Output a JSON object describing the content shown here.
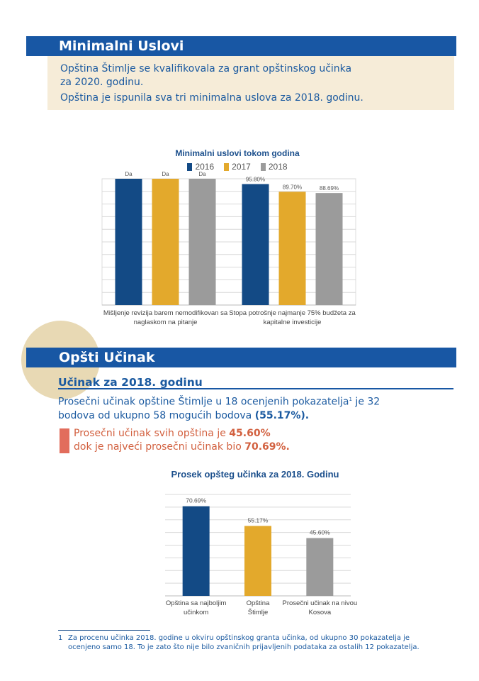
{
  "section1": {
    "title": "Minimalni Uslovi",
    "info_line1": "Opština Štimlje se kvalifikovala za grant opštinskog učinka",
    "info_line2": "za 2020. godinu.",
    "info_line3": "Opština je ispunila sva tri minimalna uslova za 2018. godinu."
  },
  "chart1": {
    "title": "Minimalni uslovi tokom godina",
    "legend": [
      "2016",
      "2017",
      "2018"
    ],
    "colors": [
      "#134a85",
      "#e3a92c",
      "#9b9b9b"
    ]
  },
  "section2": {
    "title": "Opšti Učinak",
    "subtitle": "Učinak za 2018. godinu",
    "para_line1_a": "Prosečni učinak opštine Štimlje u 18 ocenjenih pokazatelja",
    "para_sup": "1",
    "para_line1_b": " je 32",
    "para_line2_a": "bodova od ukupno 58 mogućih bodova ",
    "para_line2_b": "(55.17%).",
    "callout_line1_a": "Prosečni učinak svih opština je ",
    "callout_line1_b": "45.60%",
    "callout_line2_a": "dok je najveći prosečni učinak bio ",
    "callout_line2_b": "70.69%."
  },
  "chart2": {
    "title": "Prosek opšteg učinka za 2018. Godinu"
  },
  "chart_data": [
    {
      "type": "bar",
      "title": "Minimalni uslovi tokom godina",
      "ylim": [
        0,
        100
      ],
      "grid": true,
      "legend_position": "top",
      "categories": [
        [
          "Mišljenje revizija barem nemodifikovan sa",
          "naglaskom na pitanje"
        ],
        [
          "Stopa potrošnje najmanje 75% budžeta za",
          "kapitalne investicije"
        ]
      ],
      "series": [
        {
          "name": "2016",
          "values": [
            100,
            95.8
          ],
          "labels": [
            "Da",
            "95.80%"
          ]
        },
        {
          "name": "2017",
          "values": [
            100,
            89.7
          ],
          "labels": [
            "Da",
            "89.70%"
          ]
        },
        {
          "name": "2018",
          "values": [
            100,
            88.69
          ],
          "labels": [
            "Da",
            "88.69%"
          ]
        }
      ]
    },
    {
      "type": "bar",
      "title": "Prosek opšteg učinka za 2018. Godinu",
      "ylim": [
        0,
        80
      ],
      "grid": true,
      "categories": [
        [
          "Opština sa najboljim",
          "učinkom"
        ],
        [
          "Opština",
          "Štimlje"
        ],
        [
          "Prosečni učinak na nivou",
          "Kosova"
        ]
      ],
      "values": [
        70.69,
        55.17,
        45.6
      ],
      "labels": [
        "70.69%",
        "55.17%",
        "45.60%"
      ],
      "colors": [
        "#134a85",
        "#e3a92c",
        "#9b9b9b"
      ]
    }
  ],
  "footnote": {
    "number": "1",
    "line1": "Za procenu učinka 2018. godine u okviru opštinskog granta učinka, od ukupno 30 pokazatelja je",
    "line2": "ocenjeno samo 18. To je zato što nije bilo zvaničnih prijavljenih podataka za ostalih 12 pokazatelja."
  }
}
